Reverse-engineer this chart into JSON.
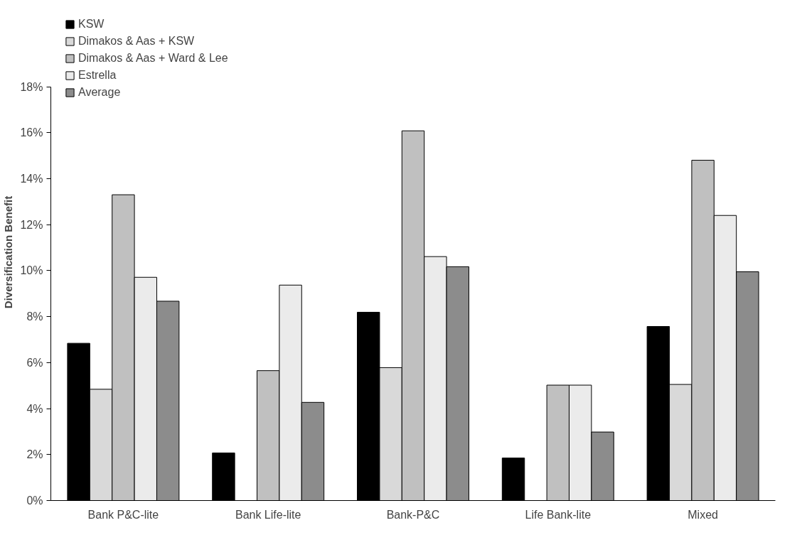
{
  "chart_data": {
    "type": "bar",
    "ylabel": "Diversification Benefit",
    "categories": [
      "Bank P&C-lite",
      "Bank Life-lite",
      "Bank-P&C",
      "Life Bank-lite",
      "Mixed"
    ],
    "series": [
      {
        "name": "KSW",
        "color": "#000000",
        "values": [
          6.84,
          2.07,
          8.19,
          1.85,
          7.57
        ]
      },
      {
        "name": "Dimakos & Aas + KSW",
        "color": "#d9d9d9",
        "values": [
          4.84,
          null,
          5.78,
          null,
          5.05
        ]
      },
      {
        "name": "Dimakos & Aas + Ward & Lee",
        "color": "#c0c0c0",
        "values": [
          13.3,
          5.65,
          16.08,
          5.02,
          14.8
        ]
      },
      {
        "name": "Estrella",
        "color": "#ebebeb",
        "values": [
          9.71,
          9.37,
          10.61,
          5.02,
          12.4
        ]
      },
      {
        "name": "Average",
        "color": "#8c8c8c",
        "values": [
          8.67,
          4.27,
          10.17,
          2.98,
          9.95
        ]
      }
    ],
    "ylim": [
      0,
      18
    ],
    "yticks": [
      {
        "value": 0,
        "label": "0%"
      },
      {
        "value": 2,
        "label": "2%"
      },
      {
        "value": 4,
        "label": "4%"
      },
      {
        "value": 6,
        "label": "6%"
      },
      {
        "value": 8,
        "label": "8%"
      },
      {
        "value": 10,
        "label": "10%"
      },
      {
        "value": 12,
        "label": "12%"
      },
      {
        "value": 14,
        "label": "14%"
      },
      {
        "value": 16,
        "label": "16%"
      },
      {
        "value": 18,
        "label": "18%"
      }
    ],
    "grid": false,
    "legend": "top"
  }
}
